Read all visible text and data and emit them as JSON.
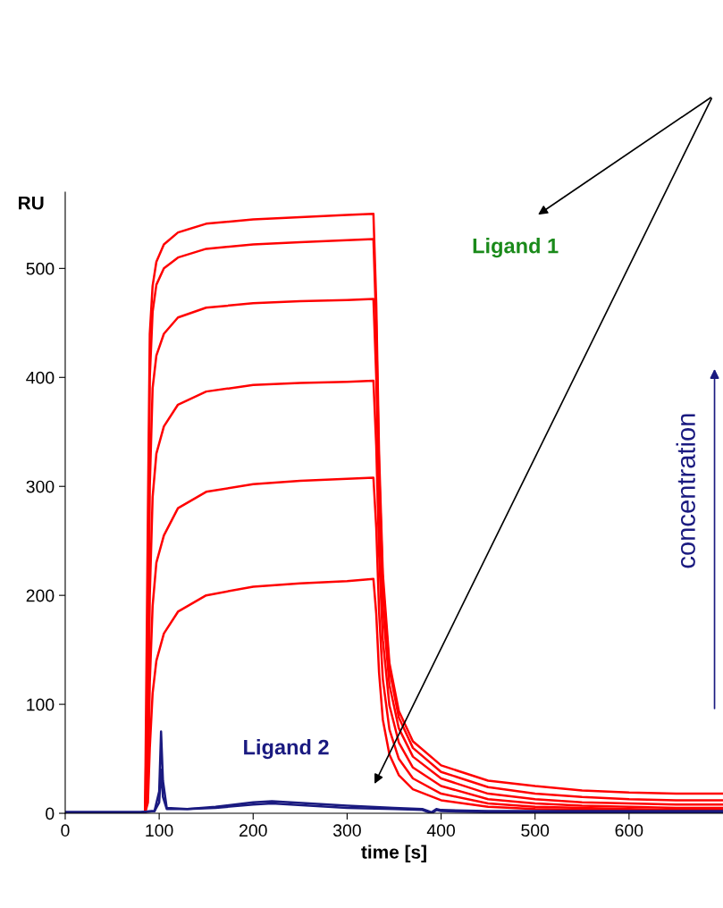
{
  "chart_data": {
    "type": "line",
    "xlabel": "time [s]",
    "ylabel": "RU",
    "xlim": [
      0,
      700
    ],
    "ylim": [
      0,
      570
    ],
    "xticks": [
      0,
      100,
      200,
      300,
      400,
      500,
      600
    ],
    "yticks": [
      0,
      100,
      200,
      300,
      400,
      500
    ],
    "grid": false,
    "marker": "none",
    "line_style": "solid",
    "annotations": [
      "Ligand 1",
      "Ligand 2",
      "concentration"
    ],
    "series": [
      {
        "color": "#ff0000",
        "x": [
          0,
          85,
          88,
          90,
          93,
          97,
          105,
          120,
          150,
          200,
          250,
          300,
          328,
          331,
          334,
          338,
          345,
          355,
          370,
          400,
          450,
          500,
          550,
          600,
          650,
          700
        ],
        "values": [
          0,
          0,
          275,
          440,
          484,
          506,
          522,
          533,
          541,
          545,
          547,
          549,
          550,
          468,
          330,
          220,
          138,
          94,
          66,
          44,
          30,
          25,
          21,
          19,
          18,
          18
        ]
      },
      {
        "color": "#ff0000",
        "x": [
          0,
          85,
          88,
          90,
          93,
          97,
          105,
          120,
          150,
          200,
          250,
          300,
          328,
          331,
          334,
          338,
          345,
          355,
          370,
          400,
          450,
          500,
          550,
          600,
          650,
          700
        ],
        "values": [
          0,
          0,
          150,
          400,
          460,
          485,
          500,
          510,
          518,
          522,
          524,
          526,
          527,
          448,
          316,
          211,
          132,
          88,
          60,
          38,
          24,
          18,
          15,
          13,
          12,
          12
        ]
      },
      {
        "color": "#ff0000",
        "x": [
          0,
          85,
          88,
          90,
          93,
          97,
          105,
          120,
          150,
          200,
          250,
          300,
          328,
          331,
          334,
          338,
          345,
          355,
          370,
          400,
          450,
          500,
          550,
          600,
          650,
          700
        ],
        "values": [
          0,
          0,
          80,
          300,
          390,
          420,
          440,
          455,
          464,
          468,
          470,
          471,
          472,
          400,
          283,
          189,
          118,
          78,
          52,
          32,
          18,
          13,
          10,
          9,
          8,
          8
        ]
      },
      {
        "color": "#ff0000",
        "x": [
          0,
          85,
          88,
          90,
          93,
          97,
          105,
          120,
          150,
          200,
          250,
          300,
          328,
          331,
          334,
          338,
          345,
          355,
          370,
          400,
          450,
          500,
          550,
          600,
          650,
          700
        ],
        "values": [
          0,
          0,
          40,
          200,
          290,
          330,
          355,
          375,
          387,
          393,
          395,
          396,
          397,
          337,
          238,
          159,
          99,
          65,
          42,
          25,
          13,
          9,
          7,
          6,
          5,
          5
        ]
      },
      {
        "color": "#ff0000",
        "x": [
          0,
          85,
          88,
          90,
          93,
          97,
          105,
          120,
          150,
          200,
          250,
          300,
          328,
          331,
          334,
          338,
          345,
          355,
          370,
          400,
          450,
          500,
          550,
          600,
          650,
          700
        ],
        "values": [
          0,
          0,
          20,
          120,
          190,
          230,
          255,
          280,
          295,
          302,
          305,
          307,
          308,
          262,
          185,
          123,
          77,
          50,
          32,
          18,
          9,
          6,
          5,
          4,
          3,
          3
        ]
      },
      {
        "color": "#ff0000",
        "x": [
          0,
          85,
          88,
          90,
          93,
          97,
          105,
          120,
          150,
          200,
          250,
          300,
          328,
          331,
          334,
          338,
          345,
          355,
          370,
          400,
          450,
          500,
          550,
          600,
          650,
          700
        ],
        "values": [
          0,
          0,
          10,
          60,
          110,
          140,
          165,
          185,
          200,
          208,
          211,
          213,
          215,
          183,
          129,
          86,
          54,
          35,
          22,
          12,
          6,
          4,
          3,
          3,
          2,
          2
        ]
      },
      {
        "color": "#1a1a80",
        "x": [
          0,
          80,
          95,
          100,
          102,
          104,
          108,
          130,
          160,
          200,
          220,
          260,
          300,
          350,
          380,
          390,
          395,
          400,
          450,
          550,
          650,
          700
        ],
        "values": [
          1,
          1,
          2,
          20,
          75,
          30,
          5,
          4,
          6,
          10,
          11,
          9,
          7,
          5,
          4,
          1,
          4,
          3,
          2,
          2,
          2,
          2
        ]
      },
      {
        "color": "#1a1a80",
        "x": [
          0,
          80,
          95,
          100,
          102,
          104,
          108,
          130,
          160,
          200,
          220,
          260,
          300,
          350,
          380,
          390,
          395,
          400,
          450,
          550,
          650,
          700
        ],
        "values": [
          1,
          1,
          2,
          10,
          40,
          15,
          4,
          4,
          5,
          8,
          9,
          7,
          5,
          4,
          3,
          0,
          3,
          2,
          1,
          1,
          1,
          1
        ]
      }
    ]
  }
}
